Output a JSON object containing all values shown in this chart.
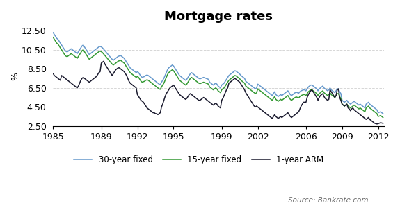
{
  "title": "Mortgage rates",
  "ylabel": "%",
  "ylim": [
    2.5,
    13.0
  ],
  "yticks": [
    2.5,
    4.5,
    6.5,
    8.5,
    10.5,
    12.5
  ],
  "xticks": [
    1985,
    1989,
    1992,
    1995,
    1999,
    2002,
    2006,
    2009,
    2012
  ],
  "xlim": [
    1985,
    2012.5
  ],
  "legend_labels": [
    "30-year fixed",
    "15-year fixed",
    "1-year ARM"
  ],
  "colors": {
    "rate30": "#6699cc",
    "rate15": "#339933",
    "arm1": "#1a1a2e"
  },
  "source_text": "Source: Bankrate.com",
  "background_color": "#ffffff",
  "grid_color": "#cccccc",
  "title_fontsize": 13,
  "axis_fontsize": 9,
  "legend_fontsize": 8.5,
  "source_fontsize": 7.5,
  "data": {
    "dates": [
      1985.0,
      1985.1,
      1985.2,
      1985.3,
      1985.4,
      1985.5,
      1985.6,
      1985.7,
      1985.8,
      1985.9,
      1986.0,
      1986.1,
      1986.2,
      1986.3,
      1986.4,
      1986.5,
      1986.6,
      1986.7,
      1986.8,
      1986.9,
      1987.0,
      1987.1,
      1987.2,
      1987.3,
      1987.4,
      1987.5,
      1987.6,
      1987.7,
      1987.8,
      1987.9,
      1988.0,
      1988.1,
      1988.2,
      1988.3,
      1988.4,
      1988.5,
      1988.6,
      1988.7,
      1988.8,
      1988.9,
      1989.0,
      1989.1,
      1989.2,
      1989.3,
      1989.4,
      1989.5,
      1989.6,
      1989.7,
      1989.8,
      1989.9,
      1990.0,
      1990.1,
      1990.2,
      1990.3,
      1990.4,
      1990.5,
      1990.6,
      1990.7,
      1990.8,
      1990.9,
      1991.0,
      1991.1,
      1991.2,
      1991.3,
      1991.4,
      1991.5,
      1991.6,
      1991.7,
      1991.8,
      1991.9,
      1992.0,
      1992.1,
      1992.2,
      1992.3,
      1992.4,
      1992.5,
      1992.6,
      1992.7,
      1992.8,
      1992.9,
      1993.0,
      1993.1,
      1993.2,
      1993.3,
      1993.4,
      1993.5,
      1993.6,
      1993.7,
      1993.8,
      1993.9,
      1994.0,
      1994.1,
      1994.2,
      1994.3,
      1994.4,
      1994.5,
      1994.6,
      1994.7,
      1994.8,
      1994.9,
      1995.0,
      1995.1,
      1995.2,
      1995.3,
      1995.4,
      1995.5,
      1995.6,
      1995.7,
      1995.8,
      1995.9,
      1996.0,
      1996.1,
      1996.2,
      1996.3,
      1996.4,
      1996.5,
      1996.6,
      1996.7,
      1996.8,
      1996.9,
      1997.0,
      1997.1,
      1997.2,
      1997.3,
      1997.4,
      1997.5,
      1997.6,
      1997.7,
      1997.8,
      1997.9,
      1998.0,
      1998.1,
      1998.2,
      1998.3,
      1998.4,
      1998.5,
      1998.6,
      1998.7,
      1998.8,
      1998.9,
      1999.0,
      1999.1,
      1999.2,
      1999.3,
      1999.4,
      1999.5,
      1999.6,
      1999.7,
      1999.8,
      1999.9,
      2000.0,
      2000.1,
      2000.2,
      2000.3,
      2000.4,
      2000.5,
      2000.6,
      2000.7,
      2000.8,
      2000.9,
      2001.0,
      2001.1,
      2001.2,
      2001.3,
      2001.4,
      2001.5,
      2001.6,
      2001.7,
      2001.8,
      2001.9,
      2002.0,
      2002.1,
      2002.2,
      2002.3,
      2002.4,
      2002.5,
      2002.6,
      2002.7,
      2002.8,
      2002.9,
      2003.0,
      2003.1,
      2003.2,
      2003.3,
      2003.4,
      2003.5,
      2003.6,
      2003.7,
      2003.8,
      2003.9,
      2004.0,
      2004.1,
      2004.2,
      2004.3,
      2004.4,
      2004.5,
      2004.6,
      2004.7,
      2004.8,
      2004.9,
      2005.0,
      2005.1,
      2005.2,
      2005.3,
      2005.4,
      2005.5,
      2005.6,
      2005.7,
      2005.8,
      2005.9,
      2006.0,
      2006.1,
      2006.2,
      2006.3,
      2006.4,
      2006.5,
      2006.6,
      2006.7,
      2006.8,
      2006.9,
      2007.0,
      2007.1,
      2007.2,
      2007.3,
      2007.4,
      2007.5,
      2007.6,
      2007.7,
      2007.8,
      2007.9,
      2008.0,
      2008.1,
      2008.2,
      2008.3,
      2008.4,
      2008.5,
      2008.6,
      2008.7,
      2008.8,
      2008.9,
      2009.0,
      2009.1,
      2009.2,
      2009.3,
      2009.4,
      2009.5,
      2009.6,
      2009.7,
      2009.8,
      2009.9,
      2010.0,
      2010.1,
      2010.2,
      2010.3,
      2010.4,
      2010.5,
      2010.6,
      2010.7,
      2010.8,
      2010.9,
      2011.0,
      2011.1,
      2011.2,
      2011.3,
      2011.4,
      2011.5,
      2011.6,
      2011.7,
      2011.8,
      2011.9,
      2012.0,
      2012.1,
      2012.2,
      2012.3,
      2012.4
    ],
    "rate30": [
      12.3,
      12.1,
      11.9,
      11.7,
      11.6,
      11.4,
      11.2,
      11.0,
      10.8,
      10.6,
      10.4,
      10.3,
      10.3,
      10.4,
      10.5,
      10.6,
      10.5,
      10.4,
      10.3,
      10.2,
      10.1,
      10.3,
      10.5,
      10.7,
      10.9,
      11.0,
      10.8,
      10.6,
      10.4,
      10.2,
      10.0,
      10.1,
      10.2,
      10.3,
      10.4,
      10.5,
      10.6,
      10.7,
      10.8,
      10.85,
      10.8,
      10.7,
      10.55,
      10.4,
      10.25,
      10.1,
      9.95,
      9.8,
      9.65,
      9.5,
      9.4,
      9.5,
      9.6,
      9.7,
      9.8,
      9.85,
      9.9,
      9.8,
      9.7,
      9.6,
      9.4,
      9.2,
      9.0,
      8.8,
      8.6,
      8.5,
      8.4,
      8.3,
      8.2,
      8.1,
      8.2,
      8.1,
      7.9,
      7.7,
      7.6,
      7.65,
      7.7,
      7.8,
      7.85,
      7.8,
      7.7,
      7.6,
      7.5,
      7.4,
      7.3,
      7.2,
      7.1,
      7.0,
      6.9,
      6.85,
      7.1,
      7.3,
      7.5,
      7.8,
      8.1,
      8.4,
      8.6,
      8.7,
      8.8,
      8.9,
      8.8,
      8.6,
      8.4,
      8.2,
      8.0,
      7.8,
      7.7,
      7.6,
      7.5,
      7.4,
      7.3,
      7.4,
      7.6,
      7.8,
      8.0,
      8.1,
      8.0,
      7.9,
      7.8,
      7.7,
      7.6,
      7.5,
      7.45,
      7.5,
      7.55,
      7.6,
      7.55,
      7.5,
      7.45,
      7.4,
      7.1,
      7.0,
      6.9,
      6.8,
      6.9,
      7.0,
      6.9,
      6.7,
      6.6,
      6.5,
      6.8,
      6.9,
      7.0,
      7.2,
      7.4,
      7.6,
      7.8,
      7.9,
      8.0,
      8.1,
      8.2,
      8.3,
      8.25,
      8.15,
      8.05,
      7.95,
      7.8,
      7.7,
      7.6,
      7.5,
      7.2,
      7.1,
      7.0,
      6.9,
      6.8,
      6.7,
      6.6,
      6.5,
      6.4,
      6.5,
      6.9,
      6.8,
      6.7,
      6.6,
      6.5,
      6.4,
      6.3,
      6.2,
      6.1,
      6.0,
      5.9,
      5.8,
      5.7,
      5.9,
      6.1,
      5.8,
      5.7,
      5.6,
      5.7,
      5.8,
      5.7,
      5.8,
      5.9,
      6.0,
      6.1,
      6.2,
      6.0,
      5.8,
      5.7,
      5.8,
      5.9,
      6.0,
      6.05,
      6.0,
      5.95,
      6.1,
      6.2,
      6.25,
      6.3,
      6.3,
      6.2,
      6.4,
      6.6,
      6.7,
      6.8,
      6.8,
      6.7,
      6.6,
      6.5,
      6.4,
      6.2,
      6.4,
      6.5,
      6.6,
      6.7,
      6.5,
      6.4,
      6.3,
      6.2,
      6.3,
      6.5,
      6.3,
      6.2,
      6.1,
      6.0,
      6.2,
      6.4,
      6.4,
      6.1,
      5.9,
      5.2,
      5.1,
      5.0,
      5.1,
      5.2,
      5.0,
      4.9,
      4.8,
      4.9,
      5.0,
      5.1,
      5.0,
      4.9,
      4.8,
      4.7,
      4.8,
      4.7,
      4.6,
      4.5,
      4.4,
      4.8,
      4.9,
      5.0,
      4.8,
      4.7,
      4.6,
      4.5,
      4.4,
      4.3,
      4.2,
      3.9,
      3.95,
      4.0,
      3.9,
      3.8
    ],
    "rate15": [
      11.8,
      11.6,
      11.4,
      11.2,
      11.1,
      10.9,
      10.7,
      10.5,
      10.3,
      10.1,
      9.9,
      9.8,
      9.8,
      9.9,
      10.0,
      10.1,
      10.0,
      9.9,
      9.8,
      9.7,
      9.6,
      9.8,
      10.0,
      10.2,
      10.4,
      10.5,
      10.3,
      10.1,
      9.9,
      9.7,
      9.5,
      9.6,
      9.7,
      9.8,
      9.9,
      10.0,
      10.1,
      10.2,
      10.3,
      10.35,
      10.3,
      10.2,
      10.05,
      9.9,
      9.75,
      9.6,
      9.45,
      9.3,
      9.15,
      9.0,
      8.9,
      9.0,
      9.1,
      9.2,
      9.3,
      9.35,
      9.4,
      9.3,
      9.2,
      9.1,
      8.9,
      8.7,
      8.5,
      8.3,
      8.1,
      8.0,
      7.9,
      7.8,
      7.7,
      7.6,
      7.7,
      7.6,
      7.4,
      7.2,
      7.1,
      7.15,
      7.2,
      7.3,
      7.35,
      7.3,
      7.2,
      7.1,
      7.0,
      6.9,
      6.8,
      6.7,
      6.6,
      6.5,
      6.4,
      6.35,
      6.6,
      6.8,
      7.0,
      7.3,
      7.6,
      7.9,
      8.1,
      8.2,
      8.3,
      8.4,
      8.3,
      8.1,
      7.9,
      7.7,
      7.5,
      7.3,
      7.2,
      7.1,
      7.0,
      6.9,
      6.8,
      6.9,
      7.1,
      7.3,
      7.5,
      7.6,
      7.5,
      7.4,
      7.3,
      7.2,
      7.1,
      7.0,
      6.95,
      7.0,
      7.05,
      7.1,
      7.05,
      7.0,
      6.95,
      6.9,
      6.6,
      6.5,
      6.4,
      6.3,
      6.4,
      6.5,
      6.4,
      6.2,
      6.1,
      6.0,
      6.3,
      6.4,
      6.5,
      6.7,
      6.9,
      7.1,
      7.3,
      7.4,
      7.5,
      7.6,
      7.7,
      7.8,
      7.75,
      7.65,
      7.55,
      7.45,
      7.3,
      7.2,
      7.1,
      7.0,
      6.7,
      6.6,
      6.5,
      6.4,
      6.3,
      6.2,
      6.1,
      6.0,
      5.9,
      6.0,
      6.4,
      6.3,
      6.2,
      6.1,
      6.0,
      5.9,
      5.8,
      5.7,
      5.6,
      5.5,
      5.4,
      5.3,
      5.2,
      5.4,
      5.6,
      5.3,
      5.2,
      5.1,
      5.2,
      5.3,
      5.2,
      5.3,
      5.4,
      5.5,
      5.6,
      5.7,
      5.5,
      5.3,
      5.2,
      5.3,
      5.4,
      5.5,
      5.55,
      5.5,
      5.45,
      5.6,
      5.7,
      5.75,
      5.8,
      5.8,
      5.7,
      5.9,
      6.1,
      6.2,
      6.3,
      6.3,
      6.2,
      6.1,
      6.0,
      5.9,
      5.7,
      5.9,
      6.0,
      6.1,
      6.2,
      6.0,
      5.9,
      5.8,
      5.7,
      5.8,
      6.0,
      5.8,
      5.7,
      5.6,
      5.5,
      5.7,
      5.9,
      5.9,
      5.6,
      5.4,
      4.8,
      4.7,
      4.6,
      4.7,
      4.8,
      4.6,
      4.5,
      4.4,
      4.5,
      4.6,
      4.7,
      4.6,
      4.5,
      4.4,
      4.3,
      4.4,
      4.3,
      4.2,
      4.1,
      4.0,
      4.4,
      4.5,
      4.6,
      4.4,
      4.3,
      4.2,
      4.1,
      4.0,
      3.9,
      3.8,
      3.5,
      3.55,
      3.6,
      3.5,
      3.4
    ],
    "arm1": [
      8.0,
      7.8,
      7.7,
      7.6,
      7.5,
      7.4,
      7.3,
      7.8,
      7.7,
      7.6,
      7.5,
      7.4,
      7.3,
      7.2,
      7.1,
      7.0,
      6.9,
      6.8,
      6.7,
      6.6,
      6.5,
      6.7,
      7.0,
      7.3,
      7.5,
      7.6,
      7.5,
      7.4,
      7.3,
      7.2,
      7.1,
      7.2,
      7.3,
      7.4,
      7.5,
      7.6,
      7.7,
      7.9,
      8.1,
      8.2,
      9.1,
      9.2,
      9.3,
      9.0,
      8.8,
      8.6,
      8.4,
      8.2,
      8.0,
      7.8,
      8.0,
      8.2,
      8.4,
      8.5,
      8.6,
      8.6,
      8.5,
      8.4,
      8.3,
      8.2,
      8.0,
      7.8,
      7.5,
      7.2,
      7.0,
      6.9,
      6.8,
      6.7,
      6.6,
      6.5,
      5.8,
      5.6,
      5.4,
      5.2,
      5.1,
      5.0,
      4.8,
      4.6,
      4.4,
      4.3,
      4.2,
      4.1,
      4.0,
      3.9,
      3.9,
      3.8,
      3.8,
      3.7,
      3.8,
      3.9,
      4.5,
      4.8,
      5.2,
      5.6,
      5.9,
      6.1,
      6.3,
      6.5,
      6.6,
      6.7,
      6.8,
      6.6,
      6.4,
      6.2,
      6.0,
      5.8,
      5.7,
      5.6,
      5.5,
      5.4,
      5.3,
      5.4,
      5.6,
      5.8,
      5.9,
      5.8,
      5.7,
      5.6,
      5.5,
      5.4,
      5.3,
      5.2,
      5.2,
      5.3,
      5.4,
      5.5,
      5.4,
      5.3,
      5.2,
      5.1,
      5.0,
      4.9,
      4.8,
      4.7,
      4.8,
      4.9,
      4.8,
      4.6,
      4.5,
      4.4,
      5.2,
      5.4,
      5.7,
      6.0,
      6.3,
      6.5,
      7.0,
      7.1,
      7.2,
      7.3,
      7.4,
      7.5,
      7.4,
      7.3,
      7.2,
      7.1,
      6.9,
      6.7,
      6.5,
      6.3,
      6.0,
      5.8,
      5.6,
      5.4,
      5.2,
      5.0,
      4.8,
      4.6,
      4.5,
      4.6,
      4.5,
      4.4,
      4.3,
      4.2,
      4.1,
      4.0,
      3.9,
      3.8,
      3.7,
      3.6,
      3.5,
      3.4,
      3.3,
      3.5,
      3.7,
      3.5,
      3.4,
      3.3,
      3.4,
      3.5,
      3.4,
      3.5,
      3.6,
      3.7,
      3.8,
      3.9,
      3.7,
      3.5,
      3.4,
      3.5,
      3.6,
      3.7,
      3.8,
      3.9,
      4.0,
      4.3,
      4.6,
      4.8,
      5.0,
      5.0,
      5.0,
      5.5,
      5.8,
      6.0,
      6.2,
      6.3,
      6.1,
      5.9,
      5.7,
      5.5,
      5.2,
      5.5,
      5.7,
      5.8,
      5.9,
      5.6,
      5.4,
      5.3,
      5.2,
      5.3,
      6.3,
      6.1,
      5.9,
      5.7,
      5.5,
      5.7,
      6.3,
      6.4,
      5.5,
      5.2,
      4.8,
      4.7,
      4.6,
      4.7,
      4.8,
      4.4,
      4.3,
      4.1,
      4.3,
      4.4,
      4.2,
      4.1,
      4.0,
      3.9,
      3.8,
      3.7,
      3.6,
      3.5,
      3.4,
      3.3,
      3.2,
      3.3,
      3.4,
      3.2,
      3.1,
      3.0,
      2.9,
      2.8,
      2.75,
      2.72,
      2.75,
      2.8,
      2.85,
      2.82,
      2.78
    ]
  }
}
